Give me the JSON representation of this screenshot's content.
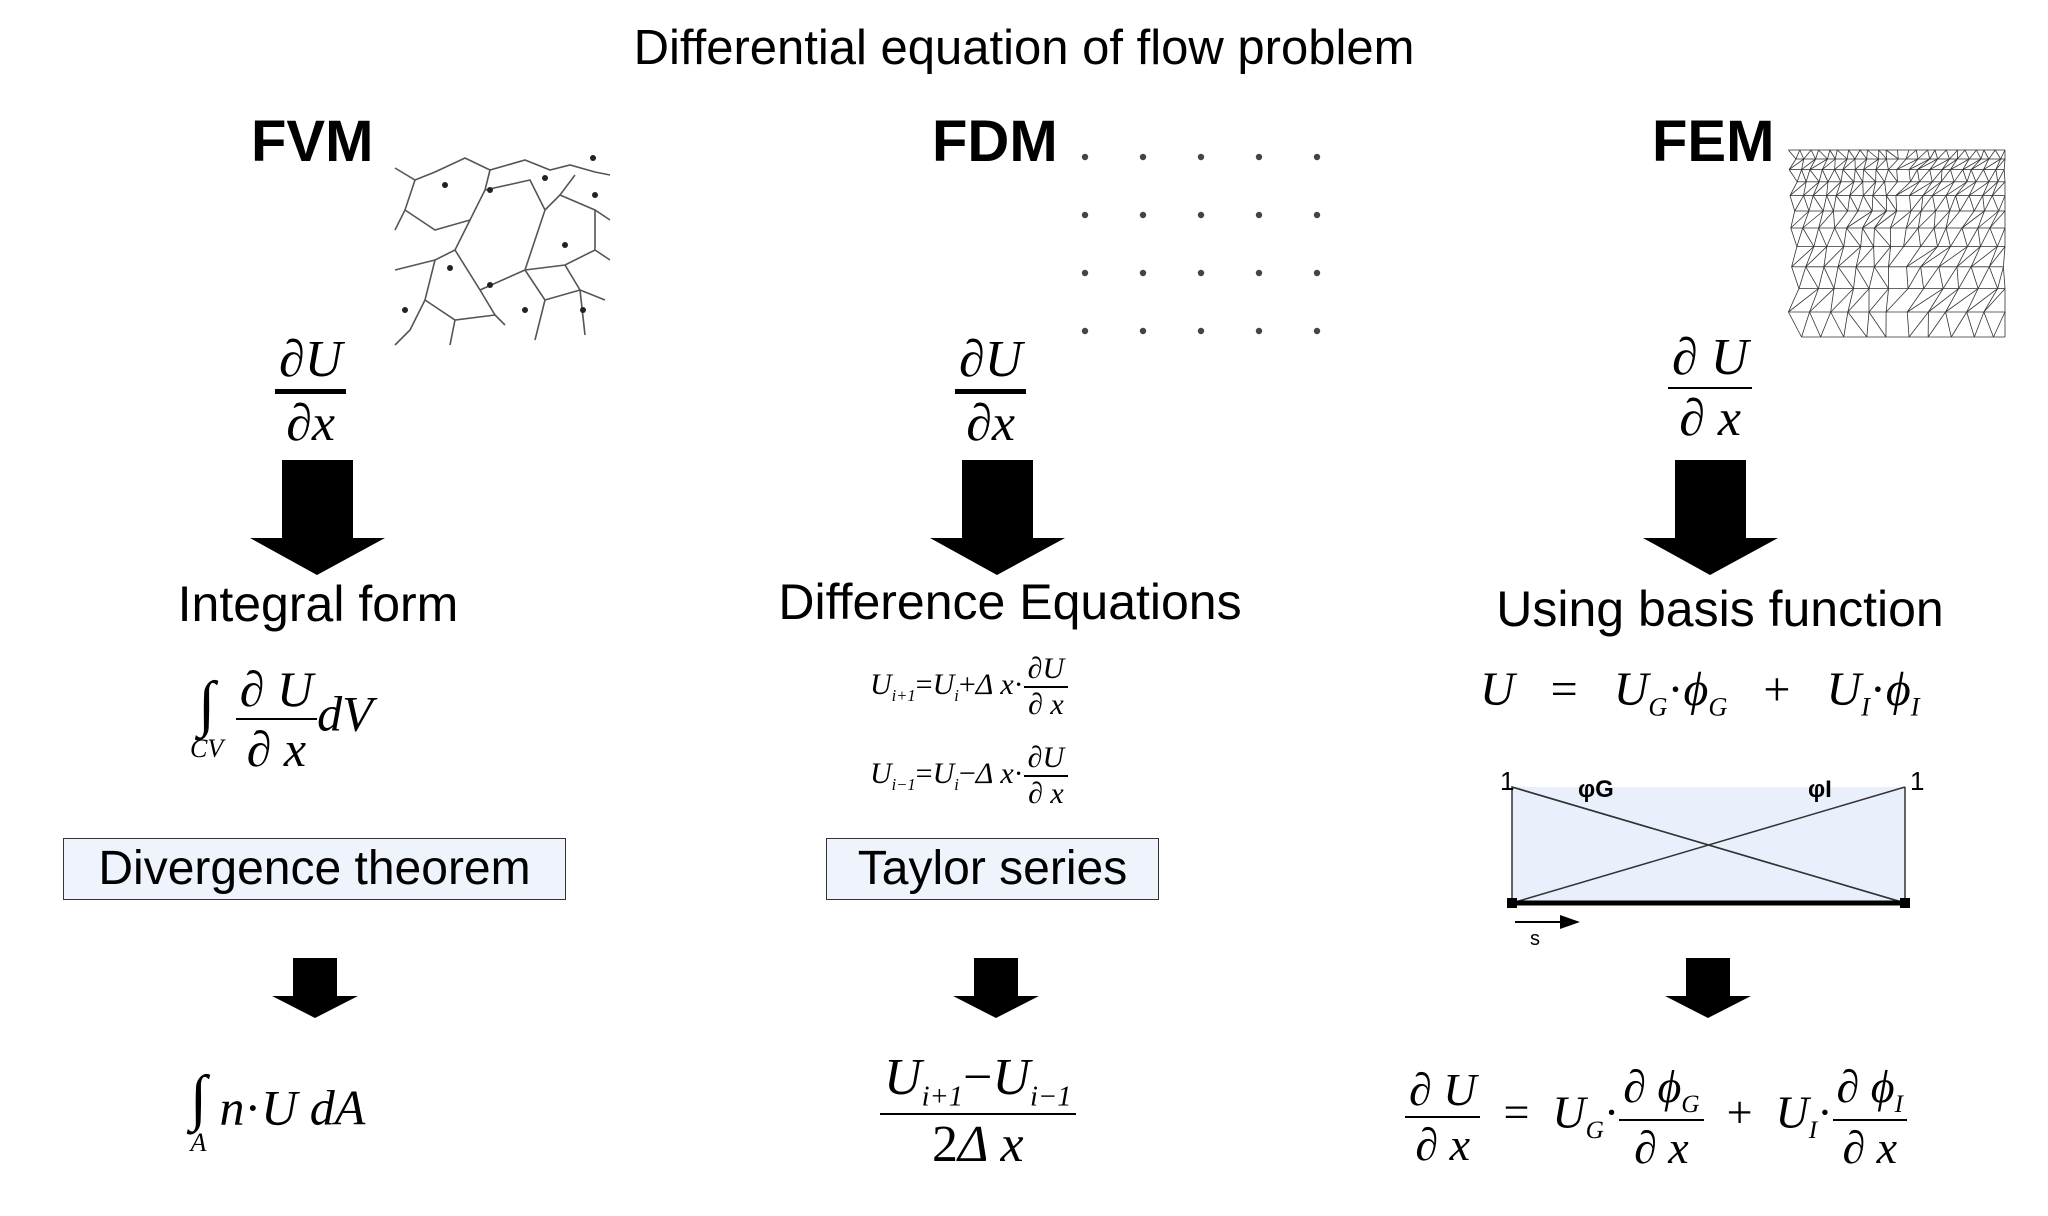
{
  "title": "Differential equation of flow problem",
  "columns": {
    "fvm": {
      "label": "FVM",
      "step1": "Integral form",
      "theorem": "Divergence theorem"
    },
    "fdm": {
      "label": "FDM",
      "step1": "Difference Equations",
      "theorem": "Taylor series"
    },
    "fem": {
      "label": "FEM",
      "step1": "Using basis function",
      "basis_plot": {
        "left_value": "1",
        "right_value": "1",
        "phi_g_label": "φG",
        "phi_i_label": "φI",
        "axis_label": "s"
      }
    }
  },
  "colors": {
    "box_fill": "#eef3fc",
    "basis_fill": "#e9f0fb",
    "text": "#000000"
  },
  "icons": [
    "fvm-voronoi-mesh-icon",
    "fdm-grid-points-icon",
    "fem-triangle-mesh-icon",
    "down-arrow-icon"
  ]
}
